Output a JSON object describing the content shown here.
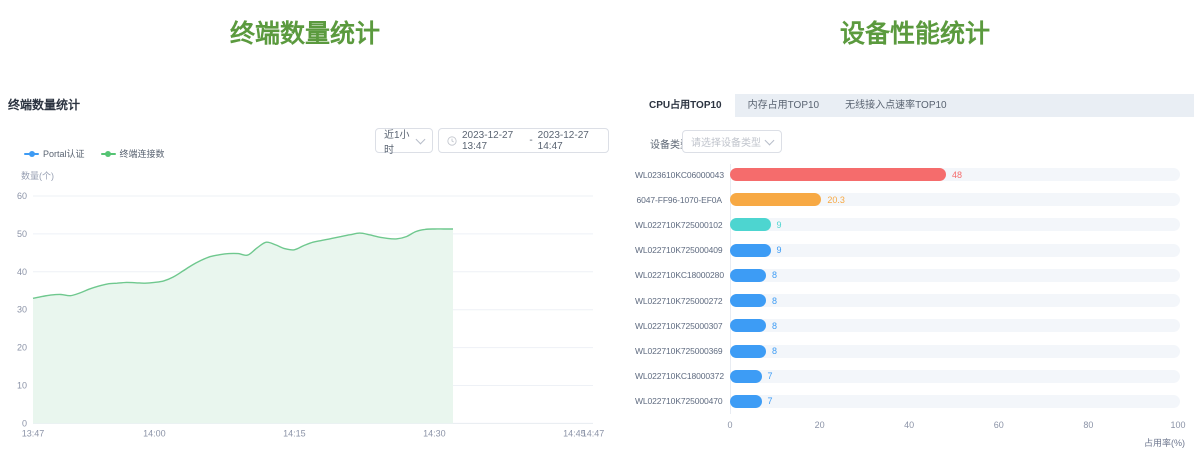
{
  "left_panel": {
    "page_title": "终端数量统计",
    "card_title": "终端数量统计",
    "range_select": {
      "value": "近1小时"
    },
    "date_range": {
      "start": "2023-12-27 13:47",
      "separator": "-",
      "end": "2023-12-27 14:47"
    },
    "legend": [
      {
        "label": "Portal认证",
        "color": "#3e9bf4"
      },
      {
        "label": "终端连接数",
        "color": "#55c474"
      }
    ]
  },
  "right_panel": {
    "page_title": "设备性能统计",
    "tabs": [
      {
        "label": "CPU占用TOP10",
        "active": true
      },
      {
        "label": "内存占用TOP10",
        "active": false
      },
      {
        "label": "无线接入点速率TOP10",
        "active": false
      }
    ],
    "filter": {
      "label": "设备类型",
      "placeholder": "请选择设备类型"
    }
  },
  "chart_data": [
    {
      "type": "area",
      "title": "终端数量统计",
      "ylabel": "数量(个)",
      "ylim": [
        0,
        60
      ],
      "y_ticks": [
        0,
        10,
        20,
        30,
        40,
        50,
        60
      ],
      "x_total_minutes": 60,
      "x_ticks": [
        {
          "label": "13:47",
          "minute": 0
        },
        {
          "label": "14:00",
          "minute": 13
        },
        {
          "label": "14:15",
          "minute": 28
        },
        {
          "label": "14:30",
          "minute": 43
        },
        {
          "label": "14:45",
          "minute": 58
        },
        {
          "label": "14:47",
          "minute": 60
        }
      ],
      "grid": true,
      "legend_position": "top-left",
      "series": [
        {
          "name": "终端连接数",
          "color": "#6fc88e",
          "fill": "#e9f6ee",
          "minutes": [
            0,
            1,
            2,
            3,
            4,
            5,
            6,
            7,
            8,
            9,
            10,
            11,
            12,
            13,
            14,
            15,
            16,
            17,
            18,
            19,
            20,
            21,
            22,
            23,
            24,
            25,
            26,
            27,
            28,
            29,
            30,
            31,
            32,
            33,
            34,
            35,
            36,
            37,
            38,
            39,
            40,
            41,
            42,
            43,
            44,
            45
          ],
          "values": [
            33,
            33.5,
            33.9,
            34,
            33.7,
            34.4,
            35.4,
            36.2,
            36.8,
            37,
            37.2,
            37.1,
            37,
            37.2,
            37.6,
            38.6,
            40.1,
            41.7,
            43,
            44,
            44.5,
            44.8,
            44.8,
            44.4,
            46.3,
            47.8,
            47.1,
            46.1,
            45.8,
            46.9,
            47.8,
            48.3,
            48.8,
            49.3,
            49.8,
            50.2,
            49.8,
            49.2,
            48.8,
            48.7,
            49.3,
            50.6,
            51.2,
            51.3,
            51.3,
            51.3
          ]
        },
        {
          "name": "Portal认证",
          "color": "#3e9bf4",
          "values": []
        }
      ]
    },
    {
      "type": "bar",
      "orientation": "horizontal",
      "categories": [
        "WL023610KC06000043",
        "6047-FF96-1070-EF0A",
        "WL022710K725000102",
        "WL022710K725000409",
        "WL022710KC18000280",
        "WL022710K725000272",
        "WL022710K725000307",
        "WL022710K725000369",
        "WL022710KC18000372",
        "WL022710K725000470"
      ],
      "values": [
        48,
        20.3,
        9,
        9,
        8,
        8,
        8,
        8,
        7,
        7
      ],
      "colors": [
        "#f56c6c",
        "#f7a944",
        "#4dd5d0",
        "#3d9cf5",
        "#3d9cf5",
        "#3d9cf5",
        "#3d9cf5",
        "#3d9cf5",
        "#3d9cf5",
        "#3d9cf5"
      ],
      "xlabel": "占用率(%)",
      "xlim": [
        0,
        100
      ],
      "x_ticks": [
        0,
        20,
        40,
        60,
        80,
        100
      ]
    }
  ]
}
